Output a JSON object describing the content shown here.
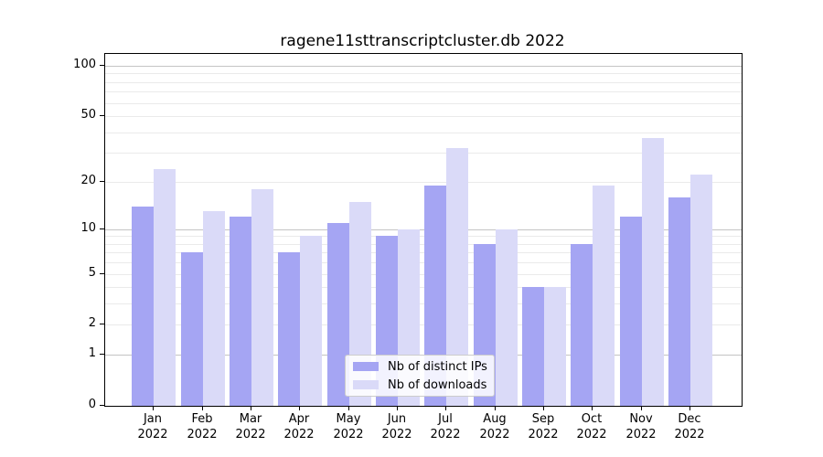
{
  "title": "ragene11sttranscriptcluster.db 2022",
  "chart_data": {
    "type": "bar",
    "title": "ragene11sttranscriptcluster.db 2022",
    "categories": [
      "Jan",
      "Feb",
      "Mar",
      "Apr",
      "May",
      "Jun",
      "Jul",
      "Aug",
      "Sep",
      "Oct",
      "Nov",
      "Dec"
    ],
    "year": "2022",
    "series": [
      {
        "name": "Nb of distinct IPs",
        "color": "#a5a5f3",
        "values": [
          14,
          7,
          12,
          7,
          11,
          9,
          19,
          8,
          4,
          8,
          12,
          16
        ]
      },
      {
        "name": "Nb of downloads",
        "color": "#dadaf8",
        "values": [
          24,
          13,
          18,
          9,
          15,
          10,
          32,
          10,
          4,
          19,
          37,
          22
        ]
      }
    ],
    "xlabel": "",
    "ylabel": "",
    "y_scale": "log10(1+x)",
    "ylim": [
      0,
      115
    ],
    "y_ticks": [
      100,
      50,
      20,
      10,
      5,
      2,
      1,
      0
    ],
    "gridlines": {
      "major": [
        1,
        10,
        100
      ],
      "minor": [
        2,
        3,
        4,
        5,
        6,
        7,
        8,
        9,
        20,
        30,
        40,
        50,
        60,
        70,
        80,
        90
      ]
    },
    "legend": {
      "position": "lower center"
    }
  },
  "colors": {
    "grid_major": "#c4c4c4",
    "grid_minor": "#eaeaea",
    "axis": "#000000",
    "legend_border": "#cccccc"
  }
}
